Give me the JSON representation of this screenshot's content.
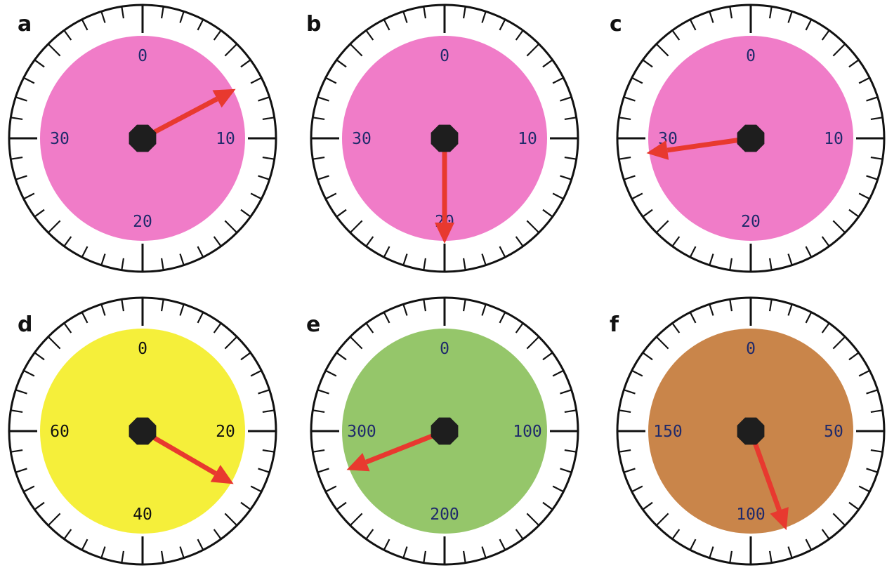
{
  "colors": {
    "face_pink": "#f07cc8",
    "face_yellow": "#f5ef3a",
    "face_green": "#95c66a",
    "face_brown": "#c9854a",
    "needle": "#e8392f",
    "hub": "#1e1e1e",
    "ring": "#111111",
    "number_default": "#1f2a6b",
    "number_dark": "#111111"
  },
  "dials": [
    {
      "letter": "a",
      "face_color": "#f07cc8",
      "number_color": "#1f2a6b",
      "scale_max": 40,
      "labels": [
        {
          "text": "0",
          "value": 0
        },
        {
          "text": "10",
          "value": 10
        },
        {
          "text": "20",
          "value": 20
        },
        {
          "text": "30",
          "value": 30
        }
      ],
      "needle_value": 6.9
    },
    {
      "letter": "b",
      "face_color": "#f07cc8",
      "number_color": "#1f2a6b",
      "scale_max": 40,
      "labels": [
        {
          "text": "0",
          "value": 0
        },
        {
          "text": "10",
          "value": 10
        },
        {
          "text": "20",
          "value": 20
        },
        {
          "text": "30",
          "value": 30
        }
      ],
      "needle_value": 20
    },
    {
      "letter": "c",
      "face_color": "#f07cc8",
      "number_color": "#1f2a6b",
      "scale_max": 40,
      "labels": [
        {
          "text": "0",
          "value": 0
        },
        {
          "text": "10",
          "value": 10
        },
        {
          "text": "20",
          "value": 20
        },
        {
          "text": "30",
          "value": 30
        }
      ],
      "needle_value": 29.1
    },
    {
      "letter": "d",
      "face_color": "#f5ef3a",
      "number_color": "#111111",
      "scale_max": 80,
      "labels": [
        {
          "text": "0",
          "value": 0
        },
        {
          "text": "20",
          "value": 20
        },
        {
          "text": "40",
          "value": 40
        },
        {
          "text": "60",
          "value": 60
        }
      ],
      "needle_value": 26.7
    },
    {
      "letter": "e",
      "face_color": "#95c66a",
      "number_color": "#1f2a6b",
      "scale_max": 400,
      "labels": [
        {
          "text": "0",
          "value": 0
        },
        {
          "text": "100",
          "value": 100
        },
        {
          "text": "200",
          "value": 200
        },
        {
          "text": "300",
          "value": 300
        }
      ],
      "needle_value": 276
    },
    {
      "letter": "f",
      "face_color": "#c9854a",
      "number_color": "#1f2a6b",
      "scale_max": 200,
      "labels": [
        {
          "text": "0",
          "value": 0
        },
        {
          "text": "50",
          "value": 50
        },
        {
          "text": "100",
          "value": 100
        },
        {
          "text": "150",
          "value": 150
        }
      ],
      "needle_value": 89
    }
  ]
}
